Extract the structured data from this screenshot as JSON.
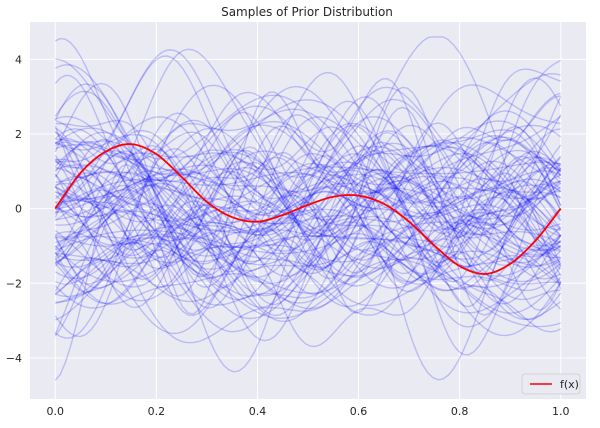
{
  "chart_data": {
    "type": "line",
    "title": "Samples of Prior Distribution",
    "xlabel": "",
    "ylabel": "",
    "xlim": [
      -0.05,
      1.05
    ],
    "ylim": [
      -5.1,
      5.0
    ],
    "x_ticks": [
      0.0,
      0.2,
      0.4,
      0.6,
      0.8,
      1.0
    ],
    "x_tick_labels": [
      "0.0",
      "0.2",
      "0.4",
      "0.6",
      "0.8",
      "1.0"
    ],
    "y_ticks": [
      -4,
      -2,
      0,
      2,
      4
    ],
    "y_tick_labels": [
      "−4",
      "−2",
      "0",
      "2",
      "4"
    ],
    "grid": true,
    "style": "seaborn-darkgrid",
    "legend": {
      "position": "bottom-right",
      "entries": [
        {
          "label": "f(x)",
          "color": "#ff0000"
        }
      ]
    },
    "prior_samples": {
      "count": 100,
      "color": "#0000ff",
      "opacity": 0.2,
      "x_range": [
        0.0,
        1.0
      ],
      "value_range": [
        -4.6,
        4.6
      ],
      "length_scale": 0.1,
      "seed": 11
    },
    "series": [
      {
        "name": "f(x)",
        "color": "#ff0000",
        "x": [
          0.0,
          0.05,
          0.1,
          0.15,
          0.2,
          0.25,
          0.3,
          0.35,
          0.4,
          0.45,
          0.5,
          0.55,
          0.6,
          0.65,
          0.7,
          0.75,
          0.8,
          0.85,
          0.9,
          0.95,
          1.0
        ],
        "y": [
          0.0,
          0.96,
          1.53,
          1.73,
          1.46,
          0.85,
          0.18,
          -0.23,
          -0.35,
          -0.17,
          0.1,
          0.32,
          0.35,
          0.13,
          -0.35,
          -0.99,
          -1.54,
          -1.75,
          -1.48,
          -0.86,
          0.0
        ]
      }
    ]
  }
}
